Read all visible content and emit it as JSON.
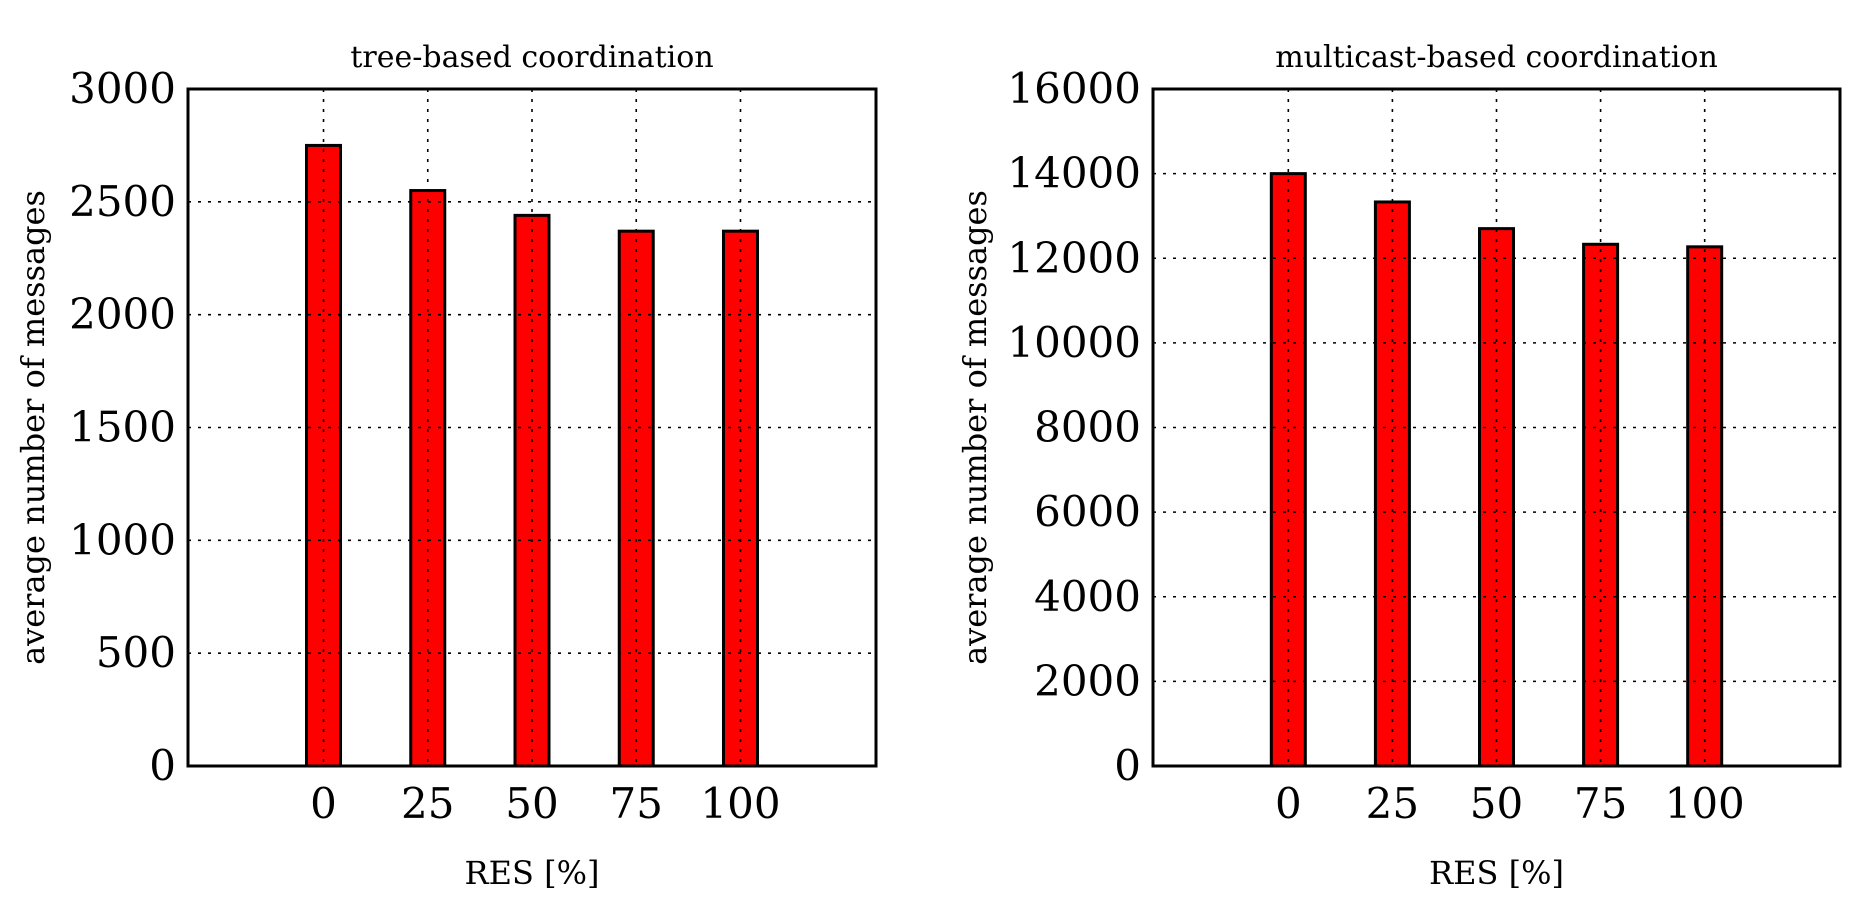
{
  "chart_data": [
    {
      "type": "bar",
      "title": "tree-based coordination",
      "xlabel": "RES [%]",
      "ylabel": "average number of messages",
      "categories": [
        "0",
        "25",
        "50",
        "75",
        "100"
      ],
      "values": [
        2750,
        2550,
        2440,
        2370,
        2370
      ],
      "ylim": [
        0,
        3000
      ],
      "yticks": [
        0,
        500,
        1000,
        1500,
        2000,
        2500,
        3000
      ],
      "grid": true,
      "bar_color": "#ff0000"
    },
    {
      "type": "bar",
      "title": "multicast-based coordination",
      "xlabel": "RES [%]",
      "ylabel": "average number of messages",
      "categories": [
        "0",
        "25",
        "50",
        "75",
        "100"
      ],
      "values": [
        14000,
        13330,
        12700,
        12330,
        12270
      ],
      "ylim": [
        0,
        16000
      ],
      "yticks": [
        0,
        2000,
        4000,
        6000,
        8000,
        10000,
        12000,
        14000,
        16000
      ],
      "grid": true,
      "bar_color": "#ff0000"
    }
  ]
}
